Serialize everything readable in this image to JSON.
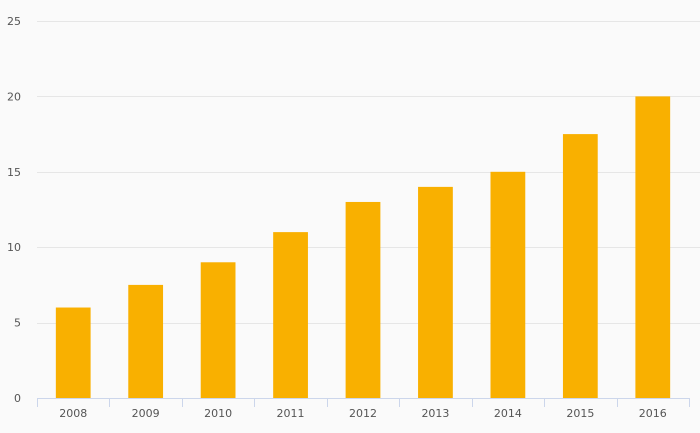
{
  "chart_data": {
    "type": "bar",
    "categories": [
      "2008",
      "2009",
      "2010",
      "2011",
      "2012",
      "2013",
      "2014",
      "2015",
      "2016"
    ],
    "values": [
      6,
      7.5,
      9,
      11,
      13,
      14,
      15,
      17.5,
      20
    ],
    "title": "",
    "xlabel": "",
    "ylabel": "",
    "ylim": [
      0,
      25
    ],
    "yticks": [
      "0",
      "5",
      "10",
      "15",
      "20",
      "25"
    ],
    "grid": true,
    "legend": "none",
    "bar_color": "#f9b000"
  }
}
